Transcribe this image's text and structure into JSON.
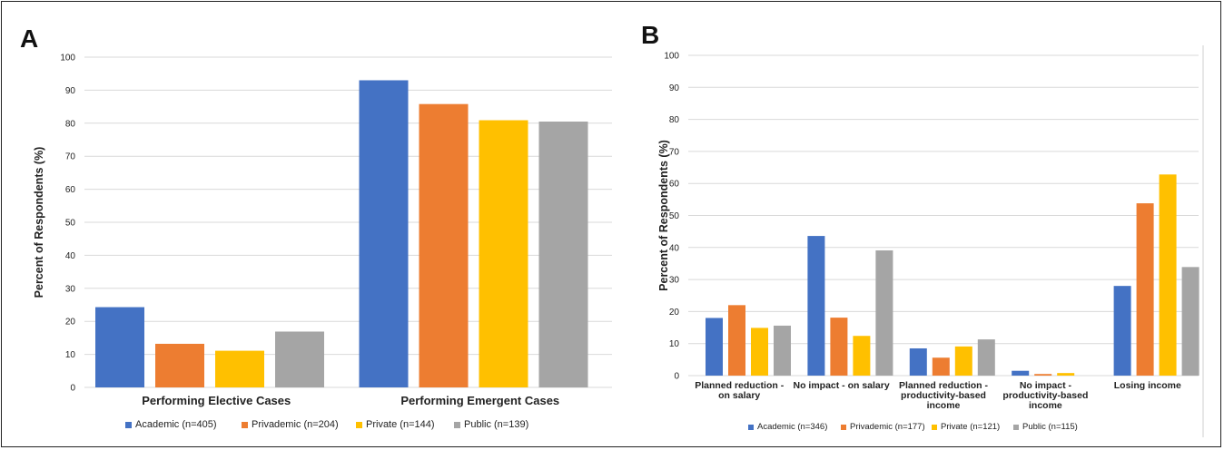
{
  "colors": {
    "academic": "#4472C4",
    "privademic": "#ED7D31",
    "private": "#FFC000",
    "public": "#A5A5A5",
    "grid": "#d9d9d9"
  },
  "panels": {
    "a_label": "A",
    "b_label": "B"
  },
  "chart_data": [
    {
      "type": "bar",
      "panel": "A",
      "ylabel": "Percent of Respondents (%)",
      "ylim": [
        0,
        100
      ],
      "yticks": [
        "0",
        "10",
        "20",
        "30",
        "40",
        "50",
        "60",
        "70",
        "80",
        "90",
        "100"
      ],
      "grid": true,
      "legend_position": "bottom",
      "categories": [
        "Performing Elective Cases",
        "Performing  Emergent Cases"
      ],
      "series": [
        {
          "name": "Academic (n=405)",
          "color_key": "academic",
          "values": [
            24.3,
            93.0
          ]
        },
        {
          "name": "Privademic (n=204)",
          "color_key": "privademic",
          "values": [
            13.2,
            85.8
          ]
        },
        {
          "name": "Private (n=144)",
          "color_key": "private",
          "values": [
            11.1,
            80.9
          ]
        },
        {
          "name": "Public (n=139)",
          "color_key": "public",
          "values": [
            16.9,
            80.5
          ]
        }
      ]
    },
    {
      "type": "bar",
      "panel": "B",
      "ylabel": "Percent of Respondents (%)",
      "ylim": [
        0,
        100
      ],
      "yticks": [
        "0",
        "10",
        "20",
        "30",
        "40",
        "50",
        "60",
        "70",
        "80",
        "90",
        "100"
      ],
      "grid": true,
      "legend_position": "bottom",
      "categories": [
        [
          "Planned reduction -",
          "on salary"
        ],
        [
          "No impact - on salary"
        ],
        [
          "Planned reduction -",
          "productivity-based",
          "income"
        ],
        [
          "No impact -",
          "productivity-based",
          "income"
        ],
        [
          "Losing income"
        ]
      ],
      "series": [
        {
          "name": "Academic (n=346)",
          "color_key": "academic",
          "values": [
            18.0,
            43.6,
            8.5,
            1.5,
            28.0
          ]
        },
        {
          "name": "Privademic (n=177)",
          "color_key": "privademic",
          "values": [
            22.0,
            18.1,
            5.6,
            0.5,
            53.8
          ]
        },
        {
          "name": "Private (n=121)",
          "color_key": "private",
          "values": [
            14.9,
            12.4,
            9.1,
            0.8,
            62.8
          ]
        },
        {
          "name": "Public (n=115)",
          "color_key": "public",
          "values": [
            15.6,
            39.1,
            11.3,
            0.0,
            33.9
          ]
        }
      ]
    }
  ]
}
